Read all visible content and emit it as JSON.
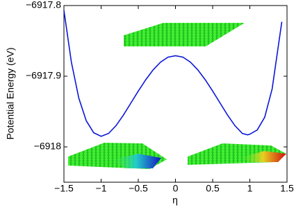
{
  "chart_data": {
    "type": "line",
    "x_label": "η",
    "y_label": "Potential Energy (eV)",
    "x": [
      -1.5,
      -1.4,
      -1.3,
      -1.2,
      -1.1,
      -1.0,
      -0.9,
      -0.8,
      -0.7,
      -0.6,
      -0.5,
      -0.4,
      -0.3,
      -0.2,
      -0.1,
      0,
      0.1,
      0.2,
      0.3,
      0.4,
      0.5,
      0.6,
      0.7,
      0.8,
      0.9,
      0.97,
      1.0,
      1.1,
      1.2,
      1.3,
      1.4,
      1.43
    ],
    "series": [
      {
        "color": "#0a16d8",
        "values": [
          -6917.807,
          -6917.88,
          -6917.931,
          -6917.963,
          -6917.98,
          -6917.985,
          -6917.981,
          -6917.97,
          -6917.955,
          -6917.938,
          -6917.921,
          -6917.905,
          -6917.891,
          -6917.88,
          -6917.873,
          -6917.871,
          -6917.873,
          -6917.88,
          -6917.891,
          -6917.905,
          -6917.921,
          -6917.938,
          -6917.955,
          -6917.97,
          -6917.981,
          -6917.983,
          -6917.982,
          -6917.976,
          -6917.958,
          -6917.918,
          -6917.845,
          -6917.823
        ]
      }
    ],
    "xlim": [
      -1.5,
      1.5
    ],
    "ylim": [
      -6918.05,
      -6917.8
    ],
    "xticks": [
      {
        "value": -1.5,
        "label": "−1.5"
      },
      {
        "value": -1,
        "label": "−1"
      },
      {
        "value": -0.5,
        "label": "−0.5"
      },
      0,
      0.5,
      1,
      1.5
    ],
    "yticks": [
      {
        "value": -6918,
        "label": "−6918"
      },
      {
        "value": -6917.9,
        "label": "−6917.9"
      },
      {
        "value": -6917.8,
        "label": "−6917.8"
      }
    ]
  }
}
